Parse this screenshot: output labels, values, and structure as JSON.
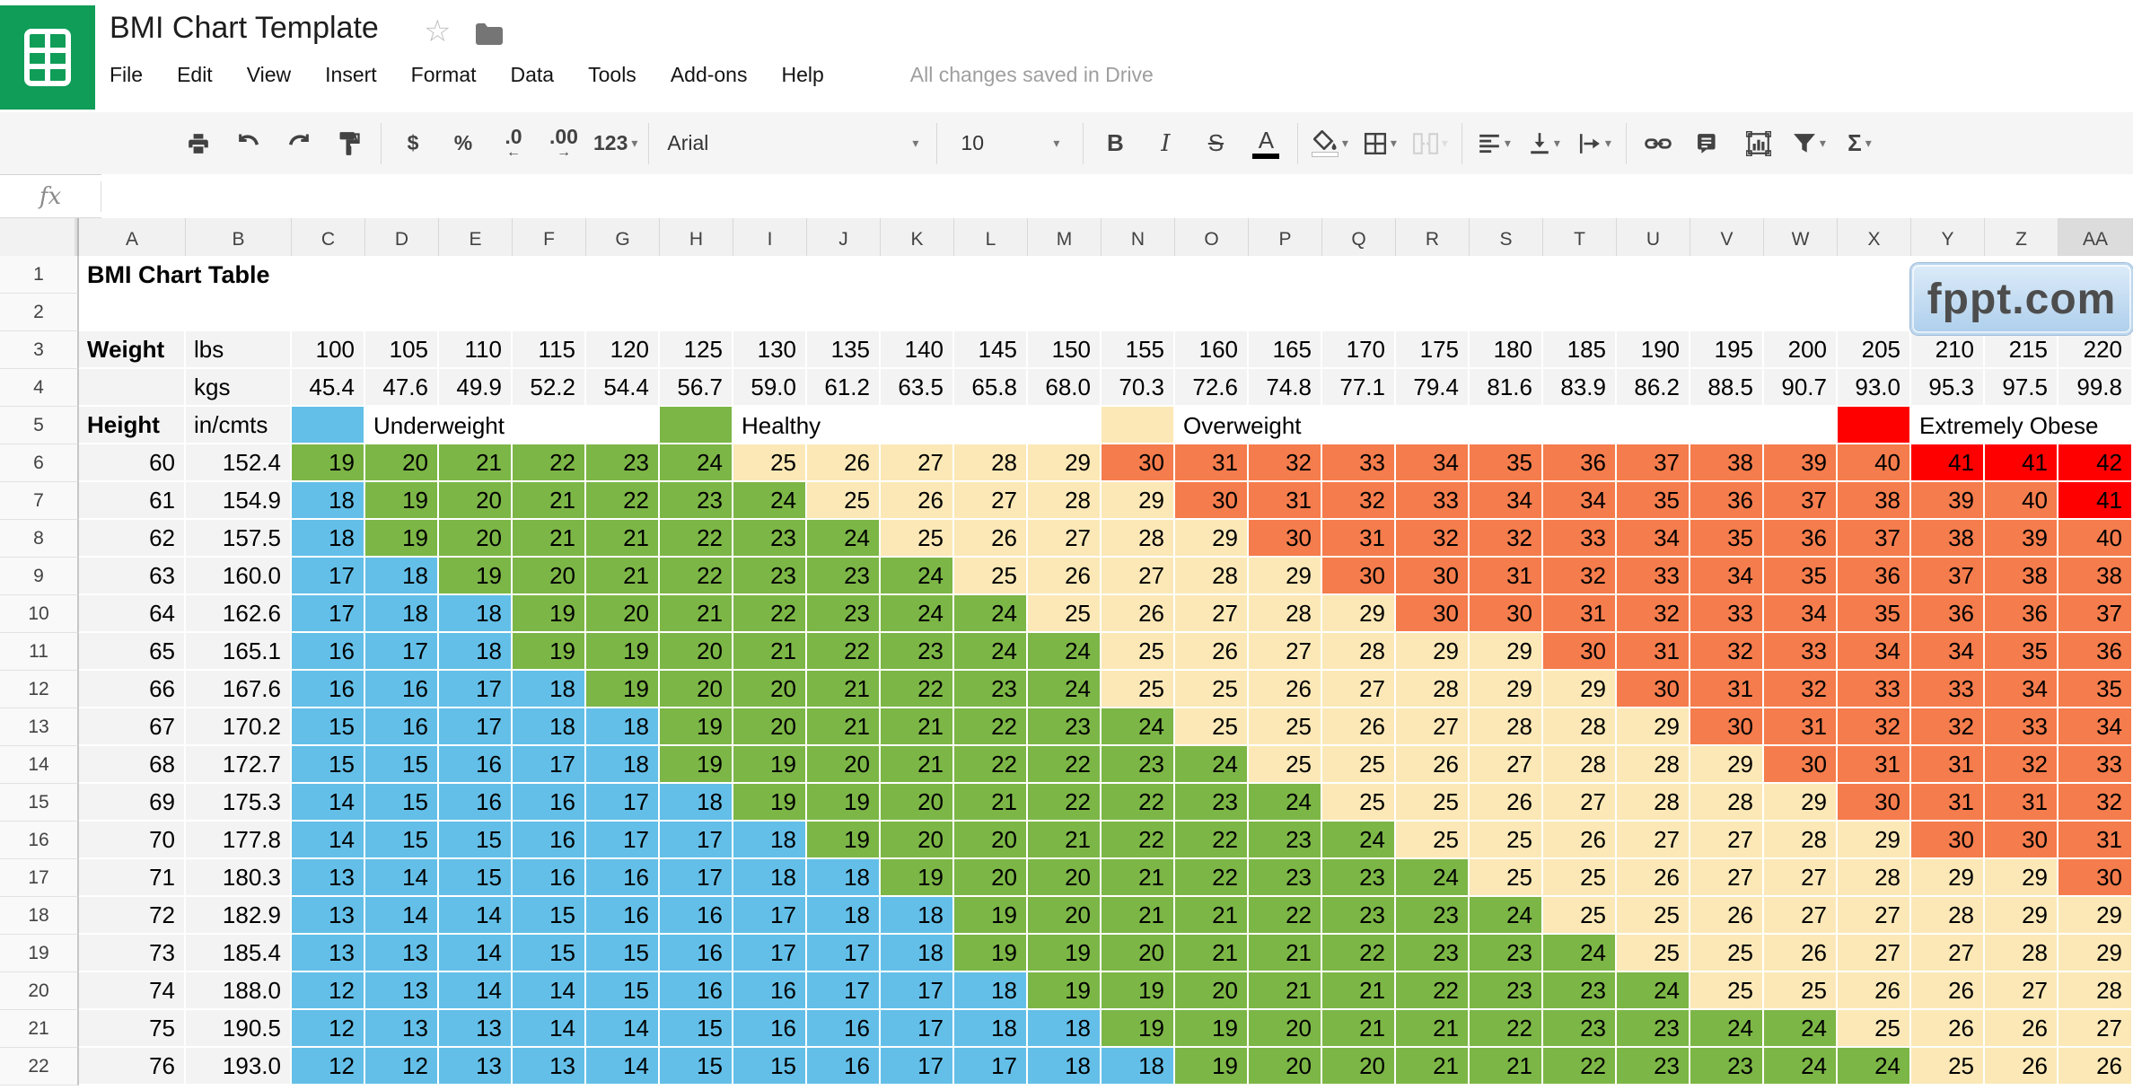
{
  "header": {
    "doc_title": "BMI Chart Template",
    "menus": [
      "File",
      "Edit",
      "View",
      "Insert",
      "Format",
      "Data",
      "Tools",
      "Add-ons",
      "Help"
    ],
    "status": "All changes saved in Drive"
  },
  "toolbar": {
    "currency": "$",
    "percent": "%",
    "decrease_decimal": ".0",
    "increase_decimal": ".00",
    "more_formats": "123",
    "font_family": "Arial",
    "font_size": "10",
    "bold": "B",
    "italic": "I",
    "strikethrough": "S",
    "text_color": "A",
    "functions": "Σ"
  },
  "formula_bar": {
    "fx": "fx",
    "value": ""
  },
  "sheet": {
    "columns": [
      "A",
      "B",
      "C",
      "D",
      "E",
      "F",
      "G",
      "H",
      "I",
      "J",
      "K",
      "L",
      "M",
      "N",
      "O",
      "P",
      "Q",
      "R",
      "S",
      "T",
      "U",
      "V",
      "W",
      "X",
      "Y",
      "Z",
      "AA"
    ],
    "row_numbers": [
      1,
      2,
      3,
      4,
      5,
      6,
      7,
      8,
      9,
      10,
      11,
      12,
      13,
      14,
      15,
      16,
      17,
      18,
      19,
      20,
      21,
      22
    ],
    "title_cell": "BMI Chart Table",
    "weight_label": "Weight",
    "height_label": "Height",
    "lbs_label": "lbs",
    "kgs_label": "kgs",
    "incmts_label": "in/cmts",
    "weights_lbs": [
      "100",
      "105",
      "110",
      "115",
      "120",
      "125",
      "130",
      "135",
      "140",
      "145",
      "150",
      "155",
      "160",
      "165",
      "170",
      "175",
      "180",
      "185",
      "190",
      "195",
      "200",
      "205",
      "210",
      "215",
      "220"
    ],
    "weights_kgs": [
      "45.4",
      "47.6",
      "49.9",
      "52.2",
      "54.4",
      "56.7",
      "59.0",
      "61.2",
      "63.5",
      "65.8",
      "68.0",
      "70.3",
      "72.6",
      "74.8",
      "77.1",
      "79.4",
      "81.6",
      "83.9",
      "86.2",
      "88.5",
      "90.7",
      "93.0",
      "95.3",
      "97.5",
      "99.8"
    ],
    "legend": {
      "underweight": "Underweight",
      "healthy": "Healthy",
      "overweight": "Overweight",
      "extremely_obese": "Extremely Obese",
      "swatch_columns": {
        "underweight": 0,
        "healthy": 5,
        "overweight": 11,
        "extremely_obese": 21
      },
      "label_columns": {
        "underweight": 1,
        "healthy": 6,
        "overweight": 12,
        "extremely_obese": 22
      }
    },
    "rows": [
      {
        "in": "60",
        "cm": "152.4",
        "bmi": [
          19,
          20,
          21,
          22,
          23,
          24,
          25,
          26,
          27,
          28,
          29,
          30,
          31,
          32,
          33,
          34,
          35,
          36,
          37,
          38,
          39,
          40,
          41,
          41,
          42
        ]
      },
      {
        "in": "61",
        "cm": "154.9",
        "bmi": [
          18,
          19,
          20,
          21,
          22,
          23,
          24,
          25,
          26,
          27,
          28,
          29,
          30,
          31,
          32,
          33,
          34,
          34,
          35,
          36,
          37,
          38,
          39,
          40,
          41
        ]
      },
      {
        "in": "62",
        "cm": "157.5",
        "bmi": [
          18,
          19,
          20,
          21,
          21,
          22,
          23,
          24,
          25,
          26,
          27,
          28,
          29,
          30,
          31,
          32,
          32,
          33,
          34,
          35,
          36,
          37,
          38,
          39,
          40
        ]
      },
      {
        "in": "63",
        "cm": "160.0",
        "bmi": [
          17,
          18,
          19,
          20,
          21,
          22,
          23,
          23,
          24,
          25,
          26,
          27,
          28,
          29,
          30,
          30,
          31,
          32,
          33,
          34,
          35,
          36,
          37,
          38,
          38
        ]
      },
      {
        "in": "64",
        "cm": "162.6",
        "bmi": [
          17,
          18,
          18,
          19,
          20,
          21,
          22,
          23,
          24,
          24,
          25,
          26,
          27,
          28,
          29,
          30,
          30,
          31,
          32,
          33,
          34,
          35,
          36,
          36,
          37
        ]
      },
      {
        "in": "65",
        "cm": "165.1",
        "bmi": [
          16,
          17,
          18,
          19,
          19,
          20,
          21,
          22,
          23,
          24,
          24,
          25,
          26,
          27,
          28,
          29,
          29,
          30,
          31,
          32,
          33,
          34,
          34,
          35,
          36
        ]
      },
      {
        "in": "66",
        "cm": "167.6",
        "bmi": [
          16,
          16,
          17,
          18,
          19,
          20,
          20,
          21,
          22,
          23,
          24,
          25,
          25,
          26,
          27,
          28,
          29,
          29,
          30,
          31,
          32,
          33,
          33,
          34,
          35
        ]
      },
      {
        "in": "67",
        "cm": "170.2",
        "bmi": [
          15,
          16,
          17,
          18,
          18,
          19,
          20,
          21,
          21,
          22,
          23,
          24,
          25,
          25,
          26,
          27,
          28,
          28,
          29,
          30,
          31,
          32,
          32,
          33,
          34
        ]
      },
      {
        "in": "68",
        "cm": "172.7",
        "bmi": [
          15,
          15,
          16,
          17,
          18,
          19,
          19,
          20,
          21,
          22,
          22,
          23,
          24,
          25,
          25,
          26,
          27,
          28,
          28,
          29,
          30,
          31,
          31,
          32,
          33
        ]
      },
      {
        "in": "69",
        "cm": "175.3",
        "bmi": [
          14,
          15,
          16,
          16,
          17,
          18,
          19,
          19,
          20,
          21,
          22,
          22,
          23,
          24,
          25,
          25,
          26,
          27,
          28,
          28,
          29,
          30,
          31,
          31,
          32
        ]
      },
      {
        "in": "70",
        "cm": "177.8",
        "bmi": [
          14,
          15,
          15,
          16,
          17,
          17,
          18,
          19,
          20,
          20,
          21,
          22,
          22,
          23,
          24,
          25,
          25,
          26,
          27,
          27,
          28,
          29,
          30,
          30,
          31
        ]
      },
      {
        "in": "71",
        "cm": "180.3",
        "bmi": [
          13,
          14,
          15,
          16,
          16,
          17,
          18,
          18,
          19,
          20,
          20,
          21,
          22,
          23,
          23,
          24,
          25,
          25,
          26,
          27,
          27,
          28,
          29,
          29,
          30
        ]
      },
      {
        "in": "72",
        "cm": "182.9",
        "bmi": [
          13,
          14,
          14,
          15,
          16,
          16,
          17,
          18,
          18,
          19,
          20,
          21,
          21,
          22,
          23,
          23,
          24,
          25,
          25,
          26,
          27,
          27,
          28,
          29,
          29
        ]
      },
      {
        "in": "73",
        "cm": "185.4",
        "bmi": [
          13,
          13,
          14,
          15,
          15,
          16,
          17,
          17,
          18,
          19,
          19,
          20,
          21,
          21,
          22,
          23,
          23,
          24,
          25,
          25,
          26,
          27,
          27,
          28,
          29
        ]
      },
      {
        "in": "74",
        "cm": "188.0",
        "bmi": [
          12,
          13,
          14,
          14,
          15,
          16,
          16,
          17,
          17,
          18,
          19,
          19,
          20,
          21,
          21,
          22,
          23,
          23,
          24,
          25,
          25,
          26,
          26,
          27,
          28
        ]
      },
      {
        "in": "75",
        "cm": "190.5",
        "bmi": [
          12,
          13,
          13,
          14,
          14,
          15,
          16,
          16,
          17,
          18,
          18,
          19,
          19,
          20,
          21,
          21,
          22,
          23,
          23,
          24,
          24,
          25,
          26,
          26,
          27
        ]
      },
      {
        "in": "76",
        "cm": "193.0",
        "bmi": [
          12,
          12,
          13,
          13,
          14,
          15,
          15,
          16,
          17,
          17,
          18,
          18,
          19,
          20,
          20,
          21,
          21,
          22,
          23,
          23,
          24,
          24,
          25,
          26,
          26
        ]
      }
    ]
  },
  "watermark": {
    "text": "fppt.com"
  },
  "colors": {
    "logo_green": "#0F9D58",
    "band_fill": "#F3F3F3",
    "underweight_blue": "#63BFE8",
    "healthy_green": "#7CB646",
    "overweight_beige": "#FBE8B6",
    "obese_orange": "#F57C4C",
    "extreme_red": "#FF0000"
  },
  "bmi_color_thresholds": {
    "blue_max": 18,
    "green_max": 24,
    "beige_max": 29,
    "orange_max": 40
  }
}
